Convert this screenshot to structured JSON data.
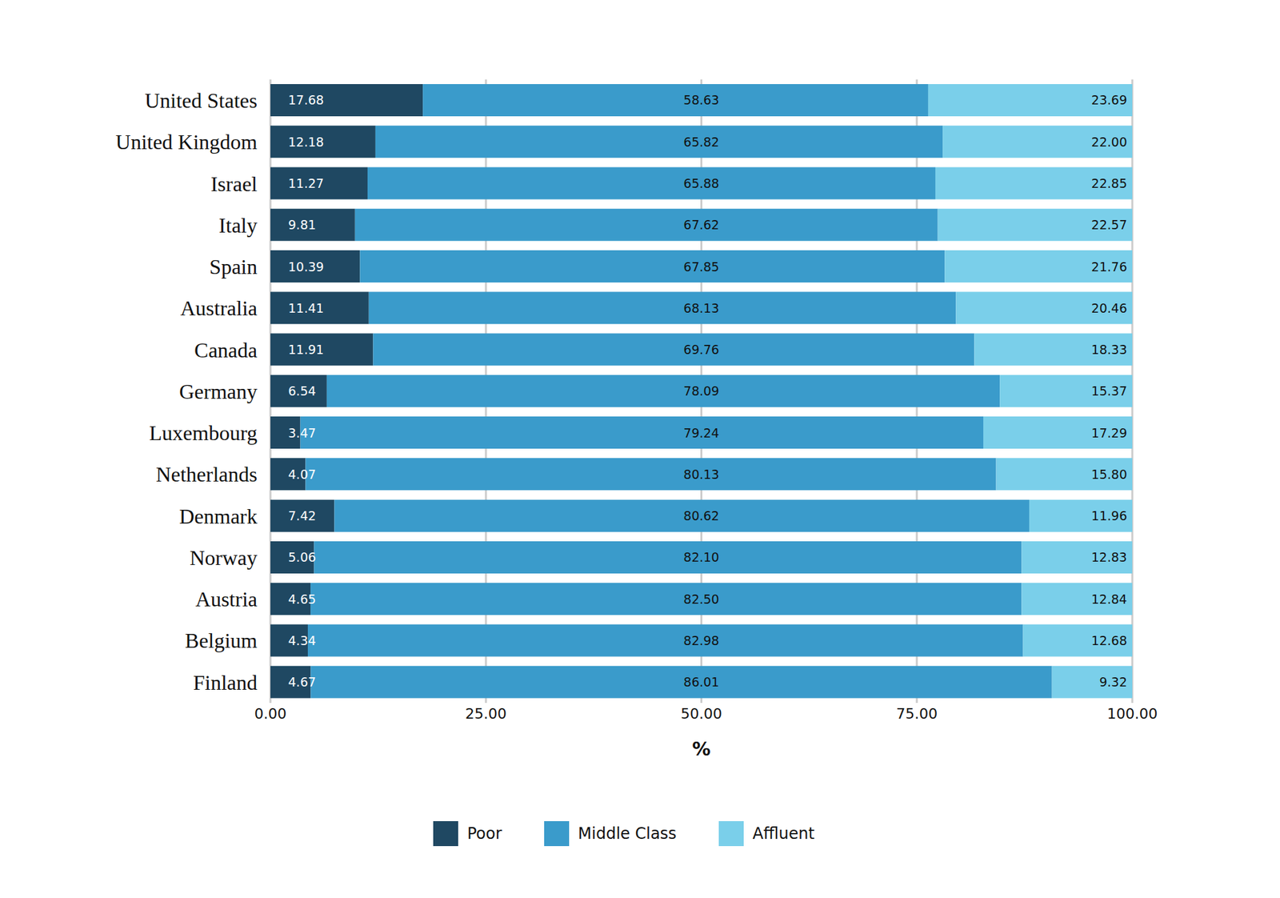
{
  "chart_data": {
    "type": "bar",
    "orientation": "horizontal",
    "stacked": true,
    "data_labels": true,
    "grid": true,
    "legend": "bottom",
    "xlabel": "%",
    "categories": [
      "United States",
      "United Kingdom",
      "Israel",
      "Italy",
      "Spain",
      "Australia",
      "Canada",
      "Germany",
      "Luxembourg",
      "Netherlands",
      "Denmark",
      "Norway",
      "Austria",
      "Belgium",
      "Finland"
    ],
    "xlim": [
      0,
      100
    ],
    "xticks": [
      {
        "value": 0,
        "label": "0.00"
      },
      {
        "value": 25,
        "label": "25.00"
      },
      {
        "value": 50,
        "label": "50.00"
      },
      {
        "value": 75,
        "label": "75.00"
      },
      {
        "value": 100,
        "label": "100.00"
      }
    ],
    "series": [
      {
        "name": "Poor",
        "color": "#1f4862",
        "values": [
          17.68,
          12.18,
          11.27,
          9.81,
          10.39,
          11.41,
          11.91,
          6.54,
          3.47,
          4.07,
          7.42,
          5.06,
          4.65,
          4.34,
          4.67
        ],
        "value_labels": [
          "17.68",
          "12.18",
          "11.27",
          "9.81",
          "10.39",
          "11.41",
          "11.91",
          "6.54",
          "3.47",
          "4.07",
          "7.42",
          "5.06",
          "4.65",
          "4.34",
          "4.67"
        ]
      },
      {
        "name": "Middle Class",
        "color": "#3a9bcb",
        "values": [
          58.63,
          65.82,
          65.88,
          67.62,
          67.85,
          68.13,
          69.76,
          78.09,
          79.24,
          80.13,
          80.62,
          82.1,
          82.5,
          82.98,
          86.01
        ],
        "value_labels": [
          "58.63",
          "65.82",
          "65.88",
          "67.62",
          "67.85",
          "68.13",
          "69.76",
          "78.09",
          "79.24",
          "80.13",
          "80.62",
          "82.10",
          "82.50",
          "82.98",
          "86.01"
        ]
      },
      {
        "name": "Affluent",
        "color": "#7acfea",
        "values": [
          23.69,
          22.0,
          22.85,
          22.57,
          21.76,
          20.46,
          18.33,
          15.37,
          17.29,
          15.8,
          11.96,
          12.83,
          12.84,
          12.68,
          9.32
        ],
        "value_labels": [
          "23.69",
          "22.00",
          "22.85",
          "22.57",
          "21.76",
          "20.46",
          "18.33",
          "15.37",
          "17.29",
          "15.80",
          "11.96",
          "12.83",
          "12.84",
          "12.68",
          "9.32"
        ]
      }
    ]
  }
}
